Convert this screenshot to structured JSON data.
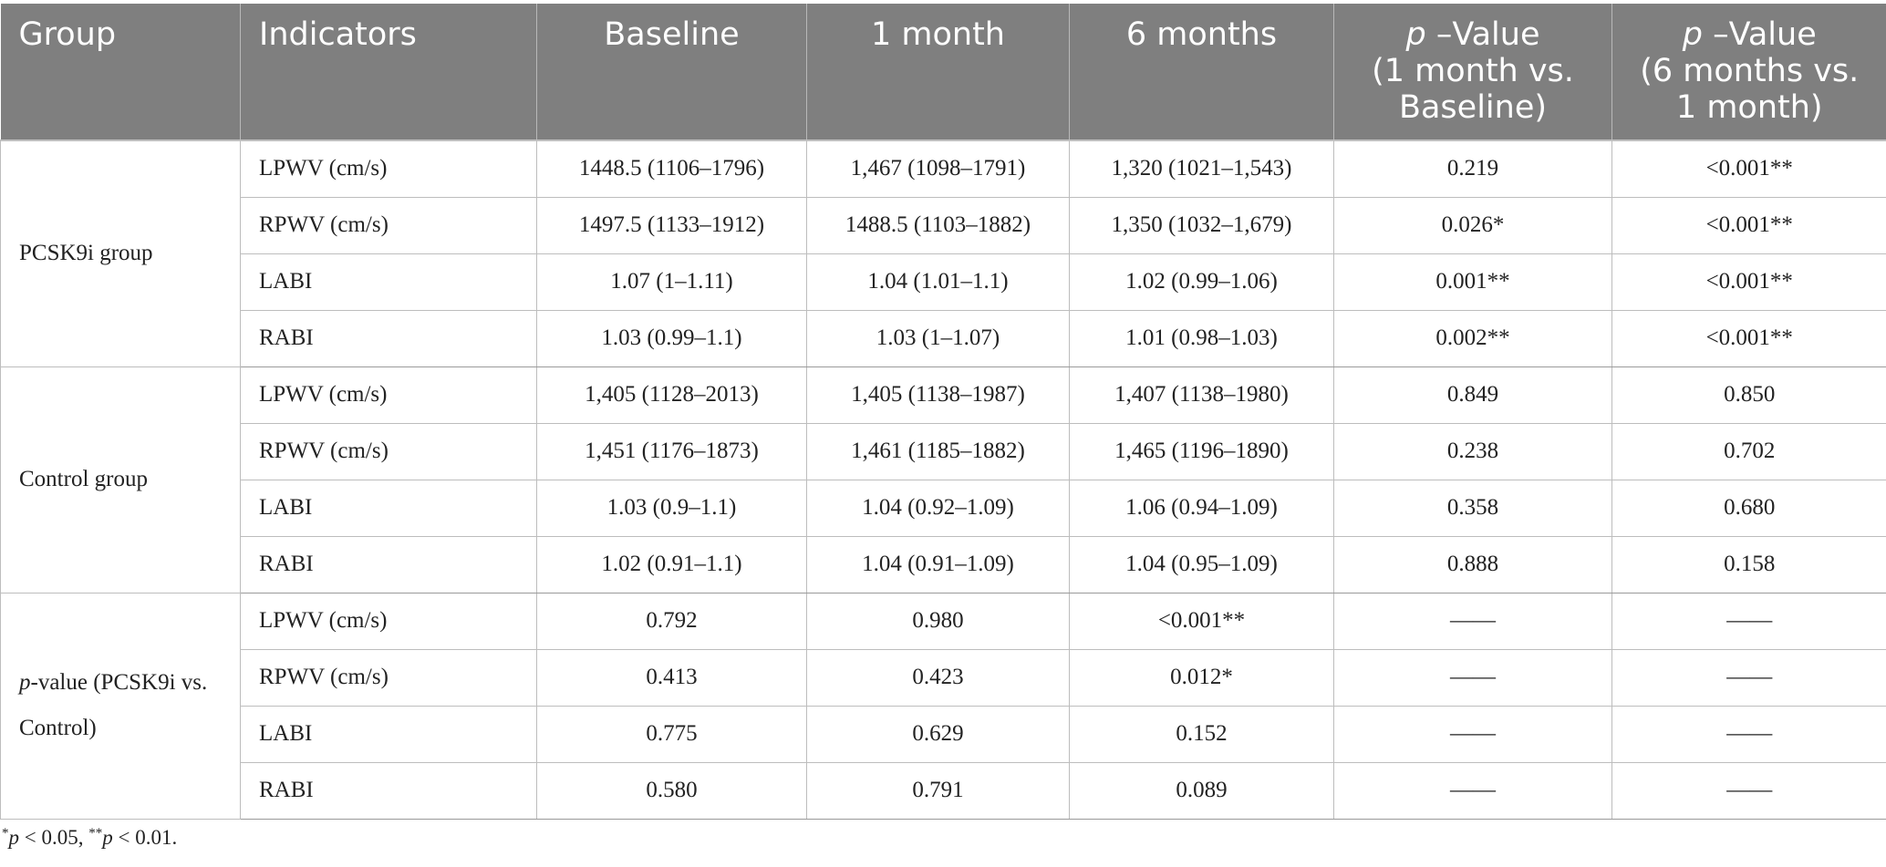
{
  "header": {
    "group": "Group",
    "indicators": "Indicators",
    "baseline": "Baseline",
    "m1": "1 month",
    "m6": "6 months",
    "p1_p": "p",
    "p1_rest1": " –Value",
    "p1_rest2": "(1 month vs.",
    "p1_rest3": "Baseline)",
    "p2_p": "p",
    "p2_rest1": " –Value",
    "p2_rest2": "(6 months vs.",
    "p2_rest3": "1 month)"
  },
  "groups": [
    {
      "label": "PCSK9i group",
      "rows": [
        {
          "indicator": "LPWV (cm/s)",
          "baseline": "1448.5 (1106–1796)",
          "m1": "1,467 (1098–1791)",
          "m6": "1,320 (1021–1,543)",
          "p1": "0.219",
          "p2": "<0.001**"
        },
        {
          "indicator": "RPWV (cm/s)",
          "baseline": "1497.5 (1133–1912)",
          "m1": "1488.5 (1103–1882)",
          "m6": "1,350 (1032–1,679)",
          "p1": "0.026*",
          "p2": "<0.001**"
        },
        {
          "indicator": "LABI",
          "baseline": "1.07 (1–1.11)",
          "m1": "1.04 (1.01–1.1)",
          "m6": "1.02 (0.99–1.06)",
          "p1": "0.001**",
          "p2": "<0.001**"
        },
        {
          "indicator": "RABI",
          "baseline": "1.03 (0.99–1.1)",
          "m1": "1.03 (1–1.07)",
          "m6": "1.01 (0.98–1.03)",
          "p1": "0.002**",
          "p2": "<0.001**"
        }
      ]
    },
    {
      "label": "Control group",
      "rows": [
        {
          "indicator": "LPWV (cm/s)",
          "baseline": "1,405 (1128–2013)",
          "m1": "1,405 (1138–1987)",
          "m6": "1,407 (1138–1980)",
          "p1": "0.849",
          "p2": "0.850"
        },
        {
          "indicator": "RPWV (cm/s)",
          "baseline": "1,451 (1176–1873)",
          "m1": "1,461 (1185–1882)",
          "m6": "1,465 (1196–1890)",
          "p1": "0.238",
          "p2": "0.702"
        },
        {
          "indicator": "LABI",
          "baseline": "1.03 (0.9–1.1)",
          "m1": "1.04 (0.92–1.09)",
          "m6": "1.06 (0.94–1.09)",
          "p1": "0.358",
          "p2": "0.680"
        },
        {
          "indicator": "RABI",
          "baseline": "1.02 (0.91–1.1)",
          "m1": "1.04 (0.91–1.09)",
          "m6": "1.04 (0.95–1.09)",
          "p1": "0.888",
          "p2": "0.158"
        }
      ]
    },
    {
      "label_italic": "p",
      "label_rest": "-value (PCSK9i vs. Control)",
      "rows": [
        {
          "indicator": "LPWV (cm/s)",
          "baseline": "0.792",
          "m1": "0.980",
          "m6": "<0.001**",
          "p1": "——",
          "p2": "——"
        },
        {
          "indicator": "RPWV (cm/s)",
          "baseline": "0.413",
          "m1": "0.423",
          "m6": "0.012*",
          "p1": "——",
          "p2": "——"
        },
        {
          "indicator": "LABI",
          "baseline": "0.775",
          "m1": "0.629",
          "m6": "0.152",
          "p1": "——",
          "p2": "——"
        },
        {
          "indicator": "RABI",
          "baseline": "0.580",
          "m1": "0.791",
          "m6": "0.089",
          "p1": "——",
          "p2": "——"
        }
      ]
    }
  ],
  "footnote": {
    "star1": "*",
    "p1": "p",
    "t1": " < 0.05, ",
    "star2": "**",
    "p2": "p",
    "t2": " < 0.01."
  },
  "colors": {
    "header_bg": "#7f7f7f",
    "header_text": "#ffffff",
    "grid": "#bdbdbd"
  }
}
